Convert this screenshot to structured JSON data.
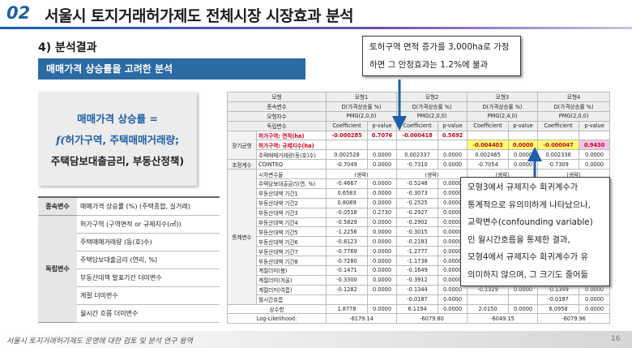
{
  "header": {
    "number": "02",
    "title": "서울시 토지거래허가제도 전체시장 시장효과 분석"
  },
  "section": "4) 분석결과",
  "banner": "매매가격 상승률을 고려한 분석",
  "formula": [
    "매매가격 상승률 =",
    "f(허가구역, 주택매매거래량;",
    "주택담보대출금리, 부동산정책)"
  ],
  "variables": [
    {
      "group": "종속변수",
      "items": [
        "매매가격 상승률 (%) (주택종합, 실거래)"
      ]
    },
    {
      "group": "독립변수",
      "items": [
        "허가구역 (구역면적 or 규제지수(㎡))",
        "주택매매거래량 (동(호)수)",
        "주택담보대출금리 (연리, %)",
        "부동산대책 발표기간 더미변수",
        "계절 더미변수",
        "월시간 흐름 더미변수"
      ]
    }
  ],
  "table": {
    "sections": [
      {
        "rows": [
          {
            "label": "모형",
            "cells": [
              "모형1",
              "모형2",
              "모형3",
              "모형4"
            ]
          },
          {
            "label": "종속변수",
            "cells": [
              "D(가격상승률 %)",
              "D(가격상승률 %)",
              "D(가격상승률 %)",
              "D(가격상승률 %)"
            ]
          },
          {
            "label": "모형차수",
            "cells": [
              "PMG(2,0,0)",
              "PMG(2,0,0)",
              "PMG(2,4,0)",
              "PMG(2,0,0)"
            ]
          },
          {
            "label": "독립변수",
            "cells": [
              "Coefficient",
              "p-value",
              "Coefficient",
              "p-value",
              "Coefficient",
              "p-value",
              "Coefficient",
              "p-value"
            ]
          }
        ]
      },
      {
        "group": "장기균형",
        "rows": [
          {
            "label": "허가구역: 면적(ha)",
            "cells": [
              "-0.000285",
              "0.7076",
              "-0.000418",
              "0.5692",
              null,
              null,
              null,
              null
            ]
          },
          {
            "label": "허가구역: 규제지수(ha)",
            "cells": [
              null,
              null,
              null,
              null,
              "-0.004403",
              "0.0000",
              "-0.000047",
              "0.9430"
            ]
          },
          {
            "label": "주택매매거래량(동(호)수)",
            "cells": [
              "0.002528",
              "0.0000",
              "0.002337",
              "0.0000",
              "0.002465",
              "0.0000",
              "0.002336",
              "0.0000"
            ]
          }
        ]
      },
      {
        "group": "조정계수",
        "rows": [
          {
            "label": "COINTEQ",
            "cells": [
              "-0.7049",
              "0.0000",
              "-0.7310",
              "0.0000",
              "-0.7054",
              "0.0000",
              "-0.7309",
              "0.0000"
            ]
          }
        ]
      },
      {
        "group": "통제변수",
        "rows": [
          {
            "label": "시차변수들",
            "cells": [
              "(생략)",
              "(생략)",
              "(생략)",
              "(생략)"
            ]
          },
          {
            "label": "주택담보대출금리(연, %)",
            "cells": [
              "-0.4667",
              "0.0000",
              "-0.5248",
              "0.0000",
              null,
              null,
              null,
              null
            ]
          },
          {
            "label": "부동산대책 기간1",
            "cells": [
              "0.6583",
              "0.0000",
              "-0.3073",
              "0.0000",
              null,
              null,
              null,
              null
            ]
          },
          {
            "label": "부동산대책 기간2",
            "cells": [
              "0.8089",
              "0.0000",
              "-0.2525",
              "0.0000",
              null,
              null,
              null,
              null
            ]
          },
          {
            "label": "부동산대책 기간3",
            "cells": [
              "-0.0518",
              "0.2730",
              "-0.2927",
              "0.0000",
              null,
              null,
              null,
              null
            ]
          },
          {
            "label": "부동산대책 기간4",
            "cells": [
              "-0.5829",
              "0.0000",
              "-0.2902",
              "0.0000",
              null,
              null,
              null,
              null
            ]
          },
          {
            "label": "부동산대책 기간5",
            "cells": [
              "-1.2256",
              "0.0000",
              "-0.3015",
              "0.0000",
              null,
              null,
              null,
              null
            ]
          },
          {
            "label": "부동산대책 기간6",
            "cells": [
              "-0.8123",
              "0.0000",
              "-0.2183",
              "0.0000",
              null,
              null,
              null,
              null
            ]
          },
          {
            "label": "부동산대책 기간7",
            "cells": [
              "-0.7769",
              "0.0000",
              "-1.2777",
              "0.0000",
              null,
              null,
              null,
              null
            ]
          },
          {
            "label": "부동산대책 기간8",
            "cells": [
              "-0.7280",
              "0.0000",
              "-1.1738",
              "0.0000",
              null,
              null,
              null,
              null
            ]
          },
          {
            "label": "계절더미(봄)",
            "cells": [
              "-0.1471",
              "0.0000",
              "-0.1649",
              "0.0000",
              null,
              null,
              null,
              null
            ]
          },
          {
            "label": "계절더미(겨울)",
            "cells": [
              "-0.3300",
              "0.0000",
              "-0.3912",
              "0.0000",
              null,
              null,
              null,
              null
            ]
          },
          {
            "label": "계절더미(여름)",
            "cells": [
              "-0.1282",
              "0.0000",
              "-0.1344",
              "0.0000",
              "-0.1329",
              "0.0000",
              "-0.1349",
              "0.0000"
            ]
          },
          {
            "label": "월시간흐름",
            "cells": [
              null,
              null,
              "-0.0187",
              "0.0000",
              null,
              null,
              "-0.0187",
              "0.0000"
            ]
          }
        ]
      },
      {
        "rows": [
          {
            "label": "상수항",
            "cells": [
              "1.8778",
              "0.0000",
              "6.1194",
              "0.0000",
              "2.0150",
              "0.0000",
              "6.0958",
              "0.0000"
            ]
          },
          {
            "label": "Log-Likelihood:",
            "cells": [
              "-6179.14",
              "-6079.80",
              "-6049.15",
              "-6079.96"
            ]
          }
        ]
      }
    ]
  },
  "callouts": [
    [
      "토허구역 면적 증가를 3,000ha로 가정",
      "하면 그 안정효과는 1.2%에 불과"
    ],
    [
      "모형3에서 규제지수 회귀계수가",
      "통계적으로 유의미하게 나타났으나,",
      "교락변수(confounding variable)",
      "인 월시간흐름을 통제한 결과,",
      "모형4에서 규제지수 회귀계수가 유",
      "의미하지 않으며, 그 크기도 줄어듦"
    ]
  ],
  "footer": {
    "text": "서울시 토지거래허가제도 운영에 대한 검토 및 분석 연구 용역",
    "page": "16"
  }
}
